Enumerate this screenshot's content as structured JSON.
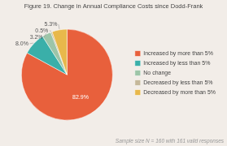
{
  "chart_data": {
    "type": "pie",
    "title": "Figure 19. Change in Annual Compliance Costs since Dodd-Frank",
    "categories": [
      "Increased by more than 5%",
      "Increased by less than 5%",
      "No change",
      "Decreased by less than 5%",
      "Decreased by more than 5%"
    ],
    "values": [
      82.9,
      8.0,
      3.2,
      0.5,
      5.3
    ],
    "value_labels": [
      "82.9%",
      "8.0%",
      "3.2%",
      "0.5%",
      "5.3%"
    ],
    "colors": [
      "#E8603C",
      "#3AAFA9",
      "#9DC5A8",
      "#C5B89A",
      "#E8B84B"
    ],
    "data_labels": true,
    "legend": "right",
    "annotations": [
      "Sample size N = 160 with 161 valid responses"
    ]
  }
}
